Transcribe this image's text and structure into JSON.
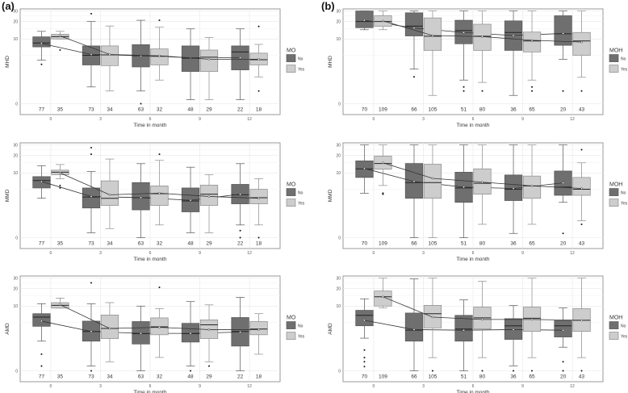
{
  "panel_labels": [
    "(a)",
    "(b)"
  ],
  "colors": {
    "No": "#6f6f6f",
    "Yes": "#cdcdcd",
    "border": "#9a9a9a",
    "line": "#333333"
  },
  "chart_data": [
    {
      "type": "box",
      "panel": "(a)",
      "ylabel": "MHD",
      "xlabel": "Time in month",
      "legend_title": "MO",
      "legend": [
        "No",
        "Yes"
      ],
      "legend_placement": "right",
      "y_scale": "log(x+1)",
      "ylim": [
        0,
        30
      ],
      "yticks": [
        0,
        10,
        20,
        30
      ],
      "xticks": [
        0,
        3,
        6,
        9,
        12
      ],
      "grid": true,
      "fields": [
        "min",
        "q1",
        "median",
        "q3",
        "max",
        "mean",
        "outliers",
        "n"
      ],
      "series": {
        "No": [
          [
            4.0,
            7.2,
            8.5,
            10.9,
            13.6,
            8.3,
            [
              3.3
            ],
            77
          ],
          [
            0.86,
            3.2,
            5.0,
            7.5,
            20,
            5.2,
            [
              27
            ],
            73
          ],
          [
            0.6,
            2.9,
            4.9,
            7.9,
            21,
            4.9,
            [
              0
            ],
            63
          ],
          [
            0.16,
            2.3,
            4.4,
            7.5,
            15,
            4.5,
            [],
            48
          ],
          [
            0.16,
            2.5,
            5.8,
            7.5,
            15,
            4.5,
            [],
            22
          ]
        ],
        "Yes": [
          [
            10,
            10,
            11,
            12.1,
            13.6,
            11.3,
            [
              6.3
            ],
            35
          ],
          [
            0.6,
            3.1,
            5.1,
            7.5,
            16.8,
            5.2,
            [],
            34
          ],
          [
            1.4,
            3.2,
            4.8,
            6.6,
            16,
            4.9,
            [
              21
            ],
            32
          ],
          [
            0.16,
            2.3,
            4.6,
            6.3,
            10.6,
            4.2,
            [],
            29
          ],
          [
            1.7,
            3.2,
            4.1,
            5.5,
            8.0,
            4.2,
            [
              0.6,
              16.5
            ],
            18
          ]
        ]
      }
    },
    {
      "type": "box",
      "panel": "(b)",
      "ylabel": "MHD",
      "xlabel": "Time in month",
      "legend_title": "MOH",
      "legend": [
        "No",
        "Yes"
      ],
      "legend_placement": "right",
      "y_scale": "log(x+1)",
      "ylim": [
        0,
        30
      ],
      "yticks": [
        0,
        10,
        20,
        30
      ],
      "xticks": [
        0,
        3,
        6,
        9,
        12
      ],
      "grid": true,
      "fields": [
        "min",
        "q1",
        "median",
        "q3",
        "max",
        "mean",
        "outliers",
        "n"
      ],
      "series": {
        "No": [
          [
            14.5,
            15.7,
            20,
            30,
            30,
            21,
            [],
            70
          ],
          [
            2.6,
            11.3,
            16.7,
            28,
            30,
            15.5,
            [
              1.7
            ],
            66
          ],
          [
            1.4,
            8.2,
            14,
            21,
            30,
            13,
            [
              0.86,
              0.6
            ],
            51
          ],
          [
            0.36,
            6.2,
            13,
            20.5,
            30,
            11.5,
            [],
            36
          ],
          [
            4.2,
            7.7,
            12.3,
            25,
            30,
            12.5,
            [
              0.6
            ],
            20
          ]
        ],
        "Yes": [
          [
            14.5,
            16.5,
            20,
            25,
            30,
            20.5,
            [],
            109
          ],
          [
            0.36,
            6.2,
            11.2,
            23,
            30,
            11.5,
            [],
            105
          ],
          [
            1.2,
            6.2,
            11.2,
            18,
            30,
            11,
            [
              0.6
            ],
            80
          ],
          [
            1.4,
            5.8,
            9.2,
            13.2,
            30,
            9.5,
            [
              0.86,
              0.6
            ],
            65
          ],
          [
            1.66,
            5.0,
            9.2,
            13,
            30,
            8.8,
            [
              0.6
            ],
            43
          ]
        ]
      }
    },
    {
      "type": "box",
      "panel": "(a)",
      "ylabel": "MMD",
      "xlabel": "Time in month",
      "legend_title": "MO",
      "legend": [
        "No",
        "Yes"
      ],
      "legend_placement": "right",
      "y_scale": "log(x+1)",
      "ylim": [
        0,
        30
      ],
      "yticks": [
        0,
        10,
        20,
        30
      ],
      "xticks": [
        0,
        3,
        6,
        9,
        12
      ],
      "grid": true,
      "fields": [
        "min",
        "q1",
        "median",
        "q3",
        "max",
        "mean",
        "outliers",
        "n"
      ],
      "series": {
        "No": [
          [
            3.3,
            5.3,
            7.3,
            8.6,
            13.4,
            7.0,
            [],
            77
          ],
          [
            0.2,
            2.0,
            3.5,
            5.3,
            10.6,
            3.6,
            [
              21,
              27
            ],
            73
          ],
          [
            0,
            1.8,
            3.4,
            6.7,
            14.5,
            3.4,
            [],
            63
          ],
          [
            0.2,
            1.6,
            2.9,
            5.3,
            12.6,
            3.0,
            [],
            48
          ],
          [
            0.6,
            2.5,
            3.9,
            6.2,
            14.5,
            4.0,
            [
              0.3,
              0
            ],
            22
          ]
        ],
        "Yes": [
          [
            7.9,
            9.3,
            10.3,
            11.2,
            14,
            10,
            [
              5.9,
              5.3
            ],
            35
          ],
          [
            0.4,
            2.3,
            3.3,
            7.2,
            17.4,
            3.9,
            [],
            34
          ],
          [
            0.6,
            2.3,
            4.1,
            5.8,
            16.5,
            4.2,
            [
              21
            ],
            32
          ],
          [
            0.2,
            2.3,
            4.0,
            6.0,
            9.3,
            3.6,
            [],
            29
          ],
          [
            0.6,
            2.5,
            3.4,
            5.0,
            7.9,
            3.3,
            [
              0
            ],
            18
          ]
        ]
      }
    },
    {
      "type": "box",
      "panel": "(b)",
      "ylabel": "MMD",
      "xlabel": "Time in month",
      "legend_title": "MOH",
      "legend": [
        "No",
        "Yes"
      ],
      "legend_placement": "right",
      "y_scale": "log(x+1)",
      "ylim": [
        0,
        30
      ],
      "yticks": [
        0,
        10,
        20,
        30
      ],
      "xticks": [
        0,
        3,
        6,
        9,
        12
      ],
      "grid": true,
      "fields": [
        "min",
        "q1",
        "median",
        "q3",
        "max",
        "mean",
        "outliers",
        "n"
      ],
      "series": {
        "No": [
          [
            4.2,
            8.3,
            11.8,
            16.2,
            30,
            12,
            [],
            70
          ],
          [
            0,
            3.3,
            6.7,
            14.6,
            30,
            7,
            [],
            66
          ],
          [
            0,
            2.7,
            5.3,
            10.3,
            30,
            5.5,
            [],
            51
          ],
          [
            0.17,
            2.95,
            5.0,
            9.2,
            30,
            5.2,
            [],
            36
          ],
          [
            2.7,
            3.8,
            5.5,
            10.8,
            30,
            6.6,
            [
              0.17
            ],
            20
          ]
        ],
        "Yes": [
          [
            5.9,
            11.6,
            14.6,
            19.5,
            30,
            15,
            [
              4.2,
              4.0
            ],
            109
          ],
          [
            0,
            3.3,
            6.7,
            14.2,
            30,
            8,
            [],
            105
          ],
          [
            0.64,
            4.0,
            6.5,
            11.8,
            30,
            6.8,
            [],
            80
          ],
          [
            0.64,
            3.3,
            5.8,
            8.8,
            30,
            5.8,
            [],
            65
          ],
          [
            0.87,
            3.8,
            5.0,
            8.3,
            15,
            5.2,
            [
              25,
              0.64
            ],
            43
          ]
        ]
      }
    },
    {
      "type": "box",
      "panel": "(a)",
      "ylabel": "AMD",
      "xlabel": "Time in month",
      "legend_title": "MO",
      "legend": [
        "No",
        "Yes"
      ],
      "legend_placement": "right",
      "y_scale": "log(x+1)",
      "ylim": [
        0,
        30
      ],
      "yticks": [
        0,
        10,
        20,
        30
      ],
      "xticks": [
        0,
        3,
        6,
        9,
        12
      ],
      "grid": true,
      "fields": [
        "min",
        "q1",
        "median",
        "q3",
        "max",
        "mean",
        "outliers",
        "n"
      ],
      "series": {
        "No": [
          [
            2.0,
            4.2,
            6.3,
            7.3,
            11,
            5.3,
            [
              0.85,
              0.19
            ],
            77
          ],
          [
            0.19,
            2.0,
            3.3,
            5.3,
            11,
            3.3,
            [
              0,
              25
            ],
            73
          ],
          [
            0,
            1.7,
            2.95,
            5.2,
            10,
            3.0,
            [],
            63
          ],
          [
            0.19,
            1.9,
            2.95,
            4.8,
            12,
            3.0,
            [
              0
            ],
            48
          ],
          [
            0,
            1.5,
            3.3,
            6.2,
            14.2,
            3.2,
            [],
            22
          ]
        ],
        "Yes": [
          [
            9.2,
            9.2,
            10.3,
            11.5,
            13.8,
            10.6,
            [],
            35
          ],
          [
            0.4,
            2.3,
            3.8,
            6.9,
            11.5,
            3.8,
            [],
            34
          ],
          [
            0.64,
            2.8,
            4.1,
            6.1,
            9.0,
            4.0,
            [
              21
            ],
            32
          ],
          [
            0.4,
            2.3,
            4.5,
            5.6,
            10.5,
            3.6,
            [
              0.19
            ],
            29
          ],
          [
            0.85,
            2.8,
            3.7,
            5.2,
            7.3,
            3.6,
            [],
            18
          ]
        ]
      }
    },
    {
      "type": "box",
      "panel": "(b)",
      "ylabel": "AMD",
      "xlabel": "Time in month",
      "legend_title": "MOH",
      "legend": [
        "No",
        "Yes"
      ],
      "legend_placement": "right",
      "y_scale": "log(x+1)",
      "ylim": [
        0,
        30
      ],
      "yticks": [
        0,
        10,
        20,
        30
      ],
      "xticks": [
        0,
        3,
        6,
        9,
        12
      ],
      "grid": true,
      "fields": [
        "min",
        "q1",
        "median",
        "q3",
        "max",
        "mean",
        "outliers",
        "n"
      ],
      "series": {
        "No": [
          [
            2.35,
            4.3,
            6.8,
            8.4,
            13.4,
            5.5,
            [
              1.16,
              0.63,
              0.4,
              0.17
            ],
            70
          ],
          [
            0,
            2.0,
            3.5,
            7.5,
            29,
            3.6,
            [],
            66
          ],
          [
            0,
            2.0,
            3.7,
            6.8,
            12.8,
            3.5,
            [],
            51
          ],
          [
            0.2,
            2.2,
            4.3,
            5.9,
            10.2,
            3.6,
            [
              0
            ],
            36
          ],
          [
            1.4,
            2.5,
            4.3,
            5.4,
            9.3,
            3.5,
            [
              0.4,
              0
            ],
            20
          ]
        ],
        "Yes": [
          [
            9.3,
            10.0,
            14.5,
            18.2,
            30,
            14.5,
            [],
            109
          ],
          [
            0.63,
            3.9,
            7.3,
            10.3,
            30,
            6.3,
            [
              0
            ],
            105
          ],
          [
            0.63,
            3.7,
            6.1,
            9.6,
            26.5,
            5.7,
            [
              0
            ],
            80
          ],
          [
            0.63,
            3.3,
            6.0,
            9.6,
            30,
            5.7,
            [
              0
            ],
            65
          ],
          [
            0.63,
            3.3,
            5.5,
            9.0,
            30,
            5.5,
            [
              0
            ],
            43
          ]
        ]
      }
    }
  ]
}
